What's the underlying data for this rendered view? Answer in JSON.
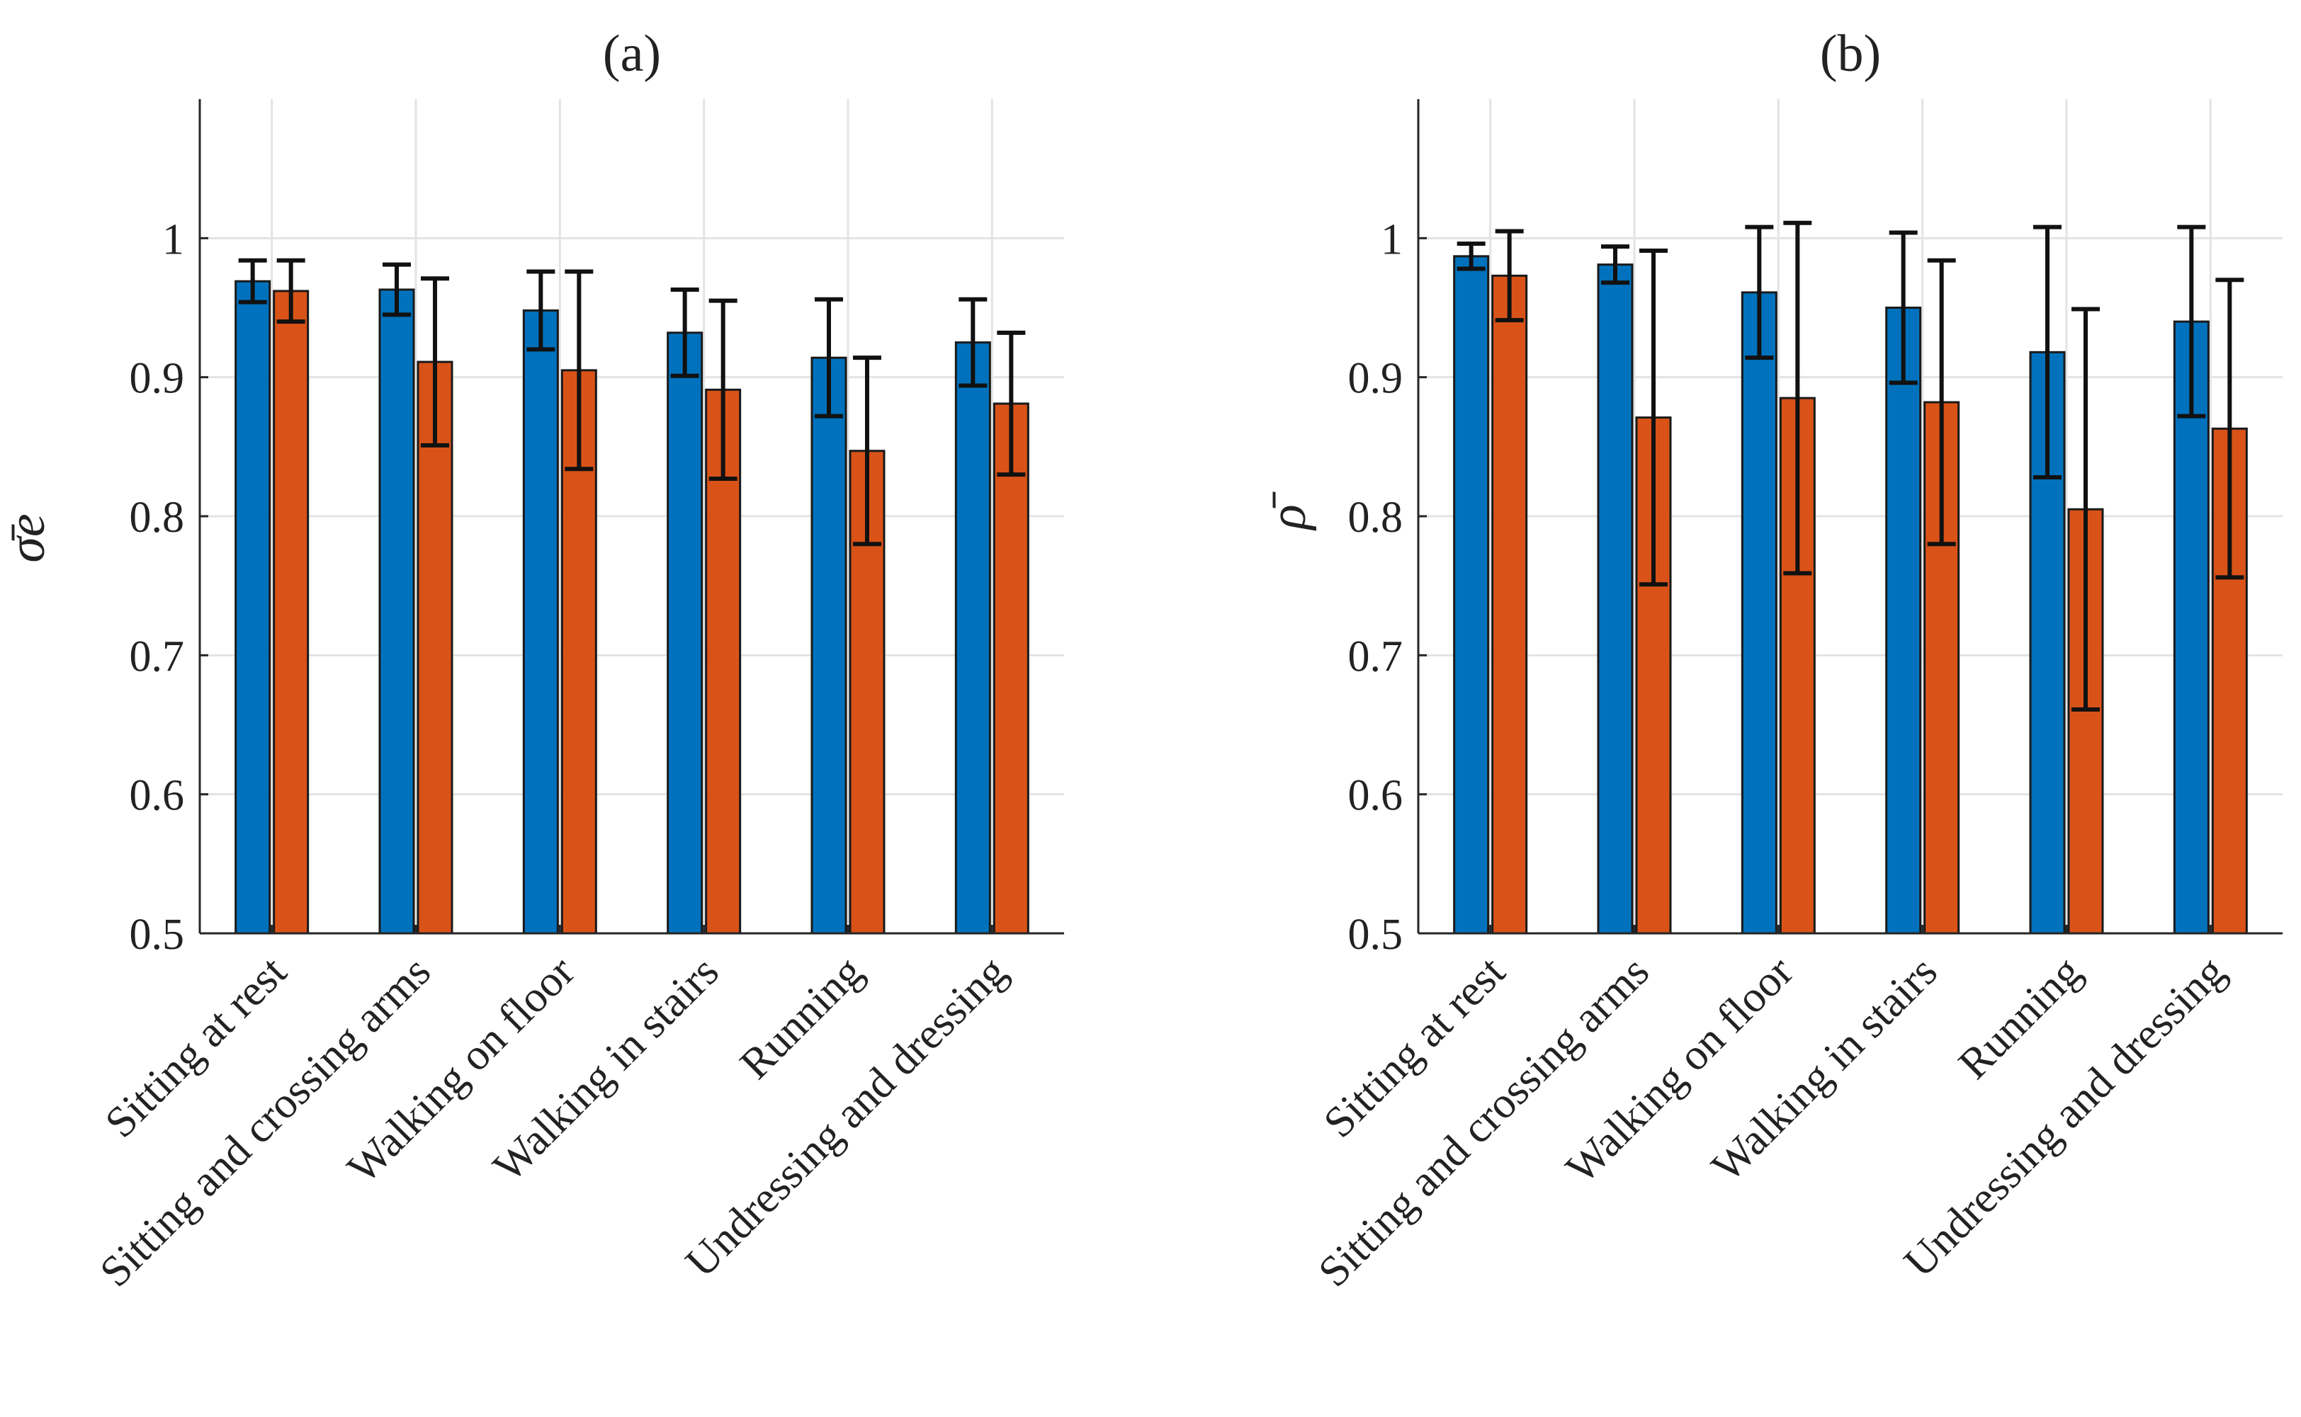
{
  "colors": {
    "series1": "#0072BD",
    "series2": "#D95319"
  },
  "chart_data": [
    {
      "type": "bar",
      "title": "(a)",
      "ylabel": "σ̄e",
      "ylim": [
        0.5,
        1.1
      ],
      "yticks": [
        "0.5",
        "0.6",
        "0.7",
        "0.8",
        "0.9",
        "1"
      ],
      "grid": true,
      "legend": "none",
      "categories": [
        "Sitting at rest",
        "Sitting and crossing arms",
        "Walking on floor",
        "Walking in stairs",
        "Running",
        "Undressing and dressing"
      ],
      "series": [
        {
          "values": [
            0.969,
            0.963,
            0.948,
            0.932,
            0.914,
            0.925
          ],
          "errors": [
            0.015,
            0.018,
            0.028,
            0.031,
            0.042,
            0.031
          ]
        },
        {
          "values": [
            0.962,
            0.911,
            0.905,
            0.891,
            0.847,
            0.881
          ],
          "errors": [
            0.022,
            0.06,
            0.071,
            0.064,
            0.067,
            0.051
          ]
        }
      ]
    },
    {
      "type": "bar",
      "title": "(b)",
      "ylabel": "ρ̄",
      "ylim": [
        0.5,
        1.1
      ],
      "yticks": [
        "0.5",
        "0.6",
        "0.7",
        "0.8",
        "0.9",
        "1"
      ],
      "grid": true,
      "legend": "none",
      "categories": [
        "Sitting at rest",
        "Sitting and crossing arms",
        "Walking on floor",
        "Walking in stairs",
        "Running",
        "Undressing and dressing"
      ],
      "series": [
        {
          "values": [
            0.987,
            0.981,
            0.961,
            0.95,
            0.918,
            0.94
          ],
          "errors": [
            0.009,
            0.013,
            0.047,
            0.054,
            0.09,
            0.068
          ]
        },
        {
          "values": [
            0.973,
            0.871,
            0.885,
            0.882,
            0.805,
            0.863
          ],
          "errors": [
            0.032,
            0.12,
            0.126,
            0.102,
            0.144,
            0.107
          ]
        }
      ]
    }
  ]
}
